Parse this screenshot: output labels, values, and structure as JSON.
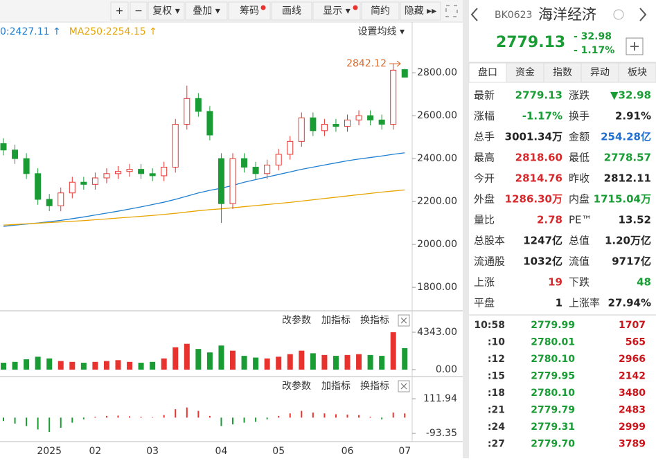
{
  "toolbar": [
    "+",
    "−",
    "复权 ▾",
    "叠加 ▾",
    "筹码",
    "画线",
    "显示 ▾",
    "简约",
    "隐藏 ▸▸"
  ],
  "ma_legend": [
    {
      "text": "0:2427.11 ↑",
      "color": "#1f7fd1"
    },
    {
      "text": "MA250:2254.15 ↑",
      "color": "#e8a400"
    }
  ],
  "ma_settings": "设置均线 ▾",
  "panel_buttons": [
    "改参数",
    "加指标",
    "换指标"
  ],
  "price_chart": {
    "type": "candlestick",
    "ylim": [
      1694,
      3010
    ],
    "yticks": [
      {
        "value": 2800,
        "label": "2800.00"
      },
      {
        "value": 2600,
        "label": "2600.00"
      },
      {
        "value": 2400,
        "label": "2400.00"
      },
      {
        "value": 2200,
        "label": "2200.00"
      },
      {
        "value": 2000,
        "label": "2000.00"
      },
      {
        "value": 1800,
        "label": "1800.00"
      }
    ],
    "max_label": 2842.12,
    "open": [
      2470,
      2440,
      2400,
      2330,
      2210,
      2180,
      2240,
      2290,
      2280,
      2310,
      2330,
      2340,
      2350,
      2330,
      2320,
      2360,
      2560,
      2680,
      2620,
      2400,
      2190,
      2400,
      2360,
      2330,
      2370,
      2420,
      2480,
      2590,
      2530,
      2560,
      2550,
      2580,
      2600,
      2580,
      2560,
      2814.76
    ],
    "high": [
      2495,
      2465,
      2425,
      2355,
      2235,
      2265,
      2315,
      2315,
      2335,
      2355,
      2365,
      2375,
      2375,
      2355,
      2385,
      2585,
      2740,
      2705,
      2645,
      2425,
      2425,
      2425,
      2385,
      2395,
      2445,
      2505,
      2615,
      2615,
      2585,
      2585,
      2605,
      2625,
      2625,
      2605,
      2842.12,
      2818.6
    ],
    "low": [
      2415,
      2375,
      2305,
      2185,
      2155,
      2155,
      2215,
      2255,
      2255,
      2285,
      2305,
      2315,
      2305,
      2295,
      2295,
      2335,
      2535,
      2595,
      2485,
      2100,
      2165,
      2335,
      2305,
      2305,
      2345,
      2395,
      2455,
      2505,
      2505,
      2525,
      2525,
      2555,
      2555,
      2535,
      2535,
      2778.57
    ],
    "close": [
      2440,
      2400,
      2330,
      2210,
      2180,
      2240,
      2290,
      2280,
      2310,
      2330,
      2340,
      2350,
      2330,
      2320,
      2360,
      2560,
      2680,
      2620,
      2510,
      2190,
      2400,
      2360,
      2330,
      2370,
      2420,
      2480,
      2590,
      2530,
      2560,
      2550,
      2580,
      2600,
      2580,
      2560,
      2812.11,
      2779.13
    ],
    "ma": [
      {
        "color": "#1f7fd1",
        "values": [
          2084,
          2090,
          2095,
          2100,
          2106,
          2112,
          2120,
          2128,
          2137,
          2146,
          2155,
          2165,
          2175,
          2186,
          2197,
          2210,
          2225,
          2240,
          2252,
          2262,
          2275,
          2290,
          2302,
          2314,
          2326,
          2338,
          2350,
          2360,
          2370,
          2380,
          2390,
          2398,
          2405,
          2412,
          2420,
          2427.11
        ]
      },
      {
        "color": "#e8a400",
        "values": [
          2090,
          2093,
          2096,
          2099,
          2102,
          2105,
          2108,
          2111,
          2115,
          2119,
          2123,
          2127,
          2131,
          2135,
          2140,
          2145,
          2151,
          2157,
          2162,
          2166,
          2171,
          2176,
          2181,
          2186,
          2191,
          2196,
          2202,
          2208,
          2214,
          2220,
          2226,
          2232,
          2238,
          2244,
          2249,
          2254.15
        ]
      }
    ],
    "x_labels": [
      {
        "label": "2025",
        "index": 4
      },
      {
        "label": "02",
        "index": 8
      },
      {
        "label": "03",
        "index": 13
      },
      {
        "label": "04",
        "index": 19
      },
      {
        "label": "05",
        "index": 24
      },
      {
        "label": "06",
        "index": 30
      },
      {
        "label": "07",
        "index": 35
      }
    ]
  },
  "volume_chart": {
    "type": "bar",
    "ylim": [
      -483,
      6595
    ],
    "yticks": [
      {
        "value": 4343,
        "label": "4343.00"
      },
      {
        "value": 0,
        "label": "0.00"
      }
    ],
    "values": [
      800,
      900,
      1200,
      1500,
      1300,
      1000,
      900,
      800,
      900,
      1000,
      1100,
      900,
      800,
      900,
      1300,
      2600,
      3000,
      2400,
      2000,
      2800,
      2200,
      1600,
      1400,
      1300,
      1500,
      1800,
      2200,
      1900,
      1700,
      1600,
      1700,
      1800,
      1700,
      1600,
      4343,
      2500
    ]
  },
  "macd_chart": {
    "type": "bar",
    "ylim": [
      -134,
      227
    ],
    "yticks": [
      {
        "value": 111.94,
        "label": "111.94"
      },
      {
        "value": -93.35,
        "label": "-93.35"
      }
    ],
    "values": [
      -20,
      -35,
      -50,
      -70,
      -85,
      -60,
      -30,
      -10,
      5,
      10,
      12,
      8,
      5,
      3,
      15,
      50,
      60,
      40,
      10,
      -50,
      -40,
      -30,
      -25,
      -10,
      10,
      25,
      40,
      30,
      25,
      20,
      18,
      15,
      5,
      -10,
      30,
      25
    ]
  },
  "quote": {
    "code": "BK0623",
    "name": "海洋经济",
    "price": "2779.13",
    "change": "- 32.98",
    "change_pct": "- 1.17%"
  },
  "tabs": [
    "盘口",
    "资金",
    "指数",
    "异动",
    "板块"
  ],
  "stats": [
    [
      {
        "label": "最新",
        "value": "2779.13",
        "color": "#1a9c35"
      },
      {
        "label": "涨跌",
        "value": "▼32.98",
        "color": "#1a9c35"
      }
    ],
    [
      {
        "label": "涨幅",
        "value": "-1.17%",
        "color": "#1a9c35"
      },
      {
        "label": "换手",
        "value": "2.91%",
        "color": "#222"
      }
    ],
    [
      {
        "label": "总手",
        "value": "3001.34万",
        "color": "#222"
      },
      {
        "label": "金额",
        "value": "254.28亿",
        "color": "#1f6fd1"
      }
    ],
    [
      {
        "label": "最高",
        "value": "2818.60",
        "color": "#d9282b"
      },
      {
        "label": "最低",
        "value": "2778.57",
        "color": "#1a9c35"
      }
    ],
    [
      {
        "label": "今开",
        "value": "2814.76",
        "color": "#d9282b"
      },
      {
        "label": "昨收",
        "value": "2812.11",
        "color": "#222"
      }
    ],
    [
      {
        "label": "外盘",
        "value": "1286.30万",
        "color": "#d9282b"
      },
      {
        "label": "内盘",
        "value": "1715.04万",
        "color": "#1a9c35"
      }
    ],
    [
      {
        "label": "量比",
        "value": "2.78",
        "color": "#d9282b"
      },
      {
        "label": "PE™",
        "value": "13.52",
        "color": "#222"
      }
    ],
    [
      {
        "label": "总股本",
        "value": "1247亿",
        "color": "#222"
      },
      {
        "label": "总值",
        "value": "1.20万亿",
        "color": "#222"
      }
    ],
    [
      {
        "label": "流通股",
        "value": "1032亿",
        "color": "#222"
      },
      {
        "label": "流值",
        "value": "9717亿",
        "color": "#222"
      }
    ],
    [
      {
        "label": "上涨",
        "value": "19",
        "color": "#d9282b"
      },
      {
        "label": "下跌",
        "value": "48",
        "color": "#1a9c35"
      }
    ],
    [
      {
        "label": "平盘",
        "value": "1",
        "color": "#222"
      },
      {
        "label": "上涨率",
        "value": "27.94%",
        "color": "#222"
      }
    ]
  ],
  "trades": [
    {
      "time": "10:58",
      "price": "2779.99",
      "volume": "1707"
    },
    {
      "time": ":10",
      "price": "2780.01",
      "volume": "565"
    },
    {
      "time": ":12",
      "price": "2780.10",
      "volume": "2966"
    },
    {
      "time": ":15",
      "price": "2779.95",
      "volume": "2142"
    },
    {
      "time": ":18",
      "price": "2780.10",
      "volume": "3480"
    },
    {
      "time": ":21",
      "price": "2779.79",
      "volume": "2483"
    },
    {
      "time": ":24",
      "price": "2779.31",
      "volume": "2999"
    },
    {
      "time": ":27",
      "price": "2779.70",
      "volume": "3789"
    }
  ]
}
